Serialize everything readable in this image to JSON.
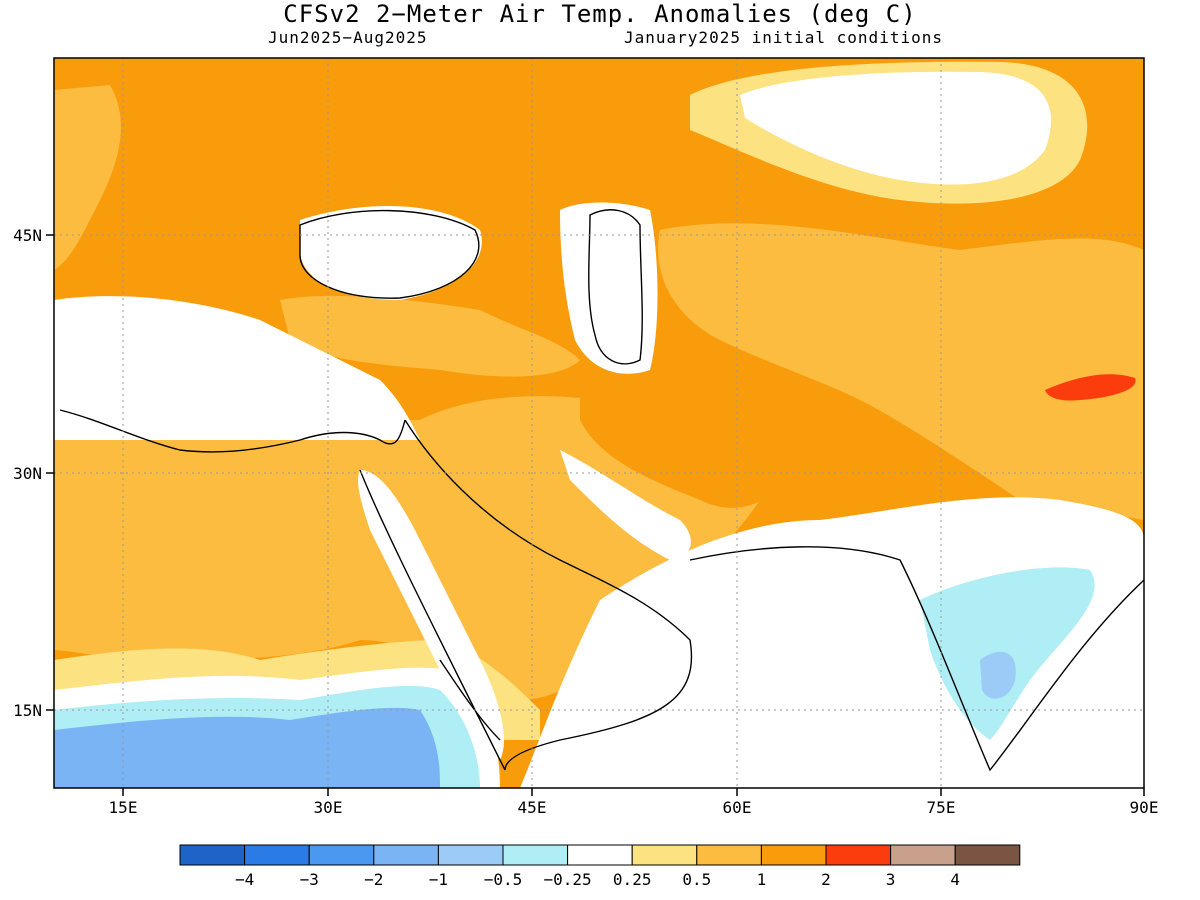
{
  "title": "CFSv2 2−Meter Air Temp. Anomalies (deg C)",
  "subtitle_left": "Jun2025−Aug2025",
  "subtitle_right": "January2025 initial conditions",
  "lon_ticks": [
    "15E",
    "30E",
    "45E",
    "60E",
    "75E",
    "90E"
  ],
  "lat_ticks": [
    "45N",
    "30N",
    "15N"
  ],
  "chart_data": {
    "type": "map",
    "title": "CFSv2 2−Meter Air Temp. Anomalies (deg C)",
    "lon_range": [
      10,
      90
    ],
    "lat_range": [
      10,
      56
    ],
    "grid": true,
    "colorbar": {
      "labels": [
        "−4",
        "−3",
        "−2",
        "−1",
        "−0.5",
        "−0.25",
        "0.25",
        "0.5",
        "1",
        "2",
        "3",
        "4"
      ],
      "colors": [
        "#1f63c9",
        "#2b7be6",
        "#4a98ef",
        "#7ab4f4",
        "#9ccbf7",
        "#aeeef4",
        "#ffffff",
        "#fde281",
        "#fcbc40",
        "#f99c0c",
        "#fb3c0c",
        "#c8a08c",
        "#7c5444"
      ]
    }
  }
}
